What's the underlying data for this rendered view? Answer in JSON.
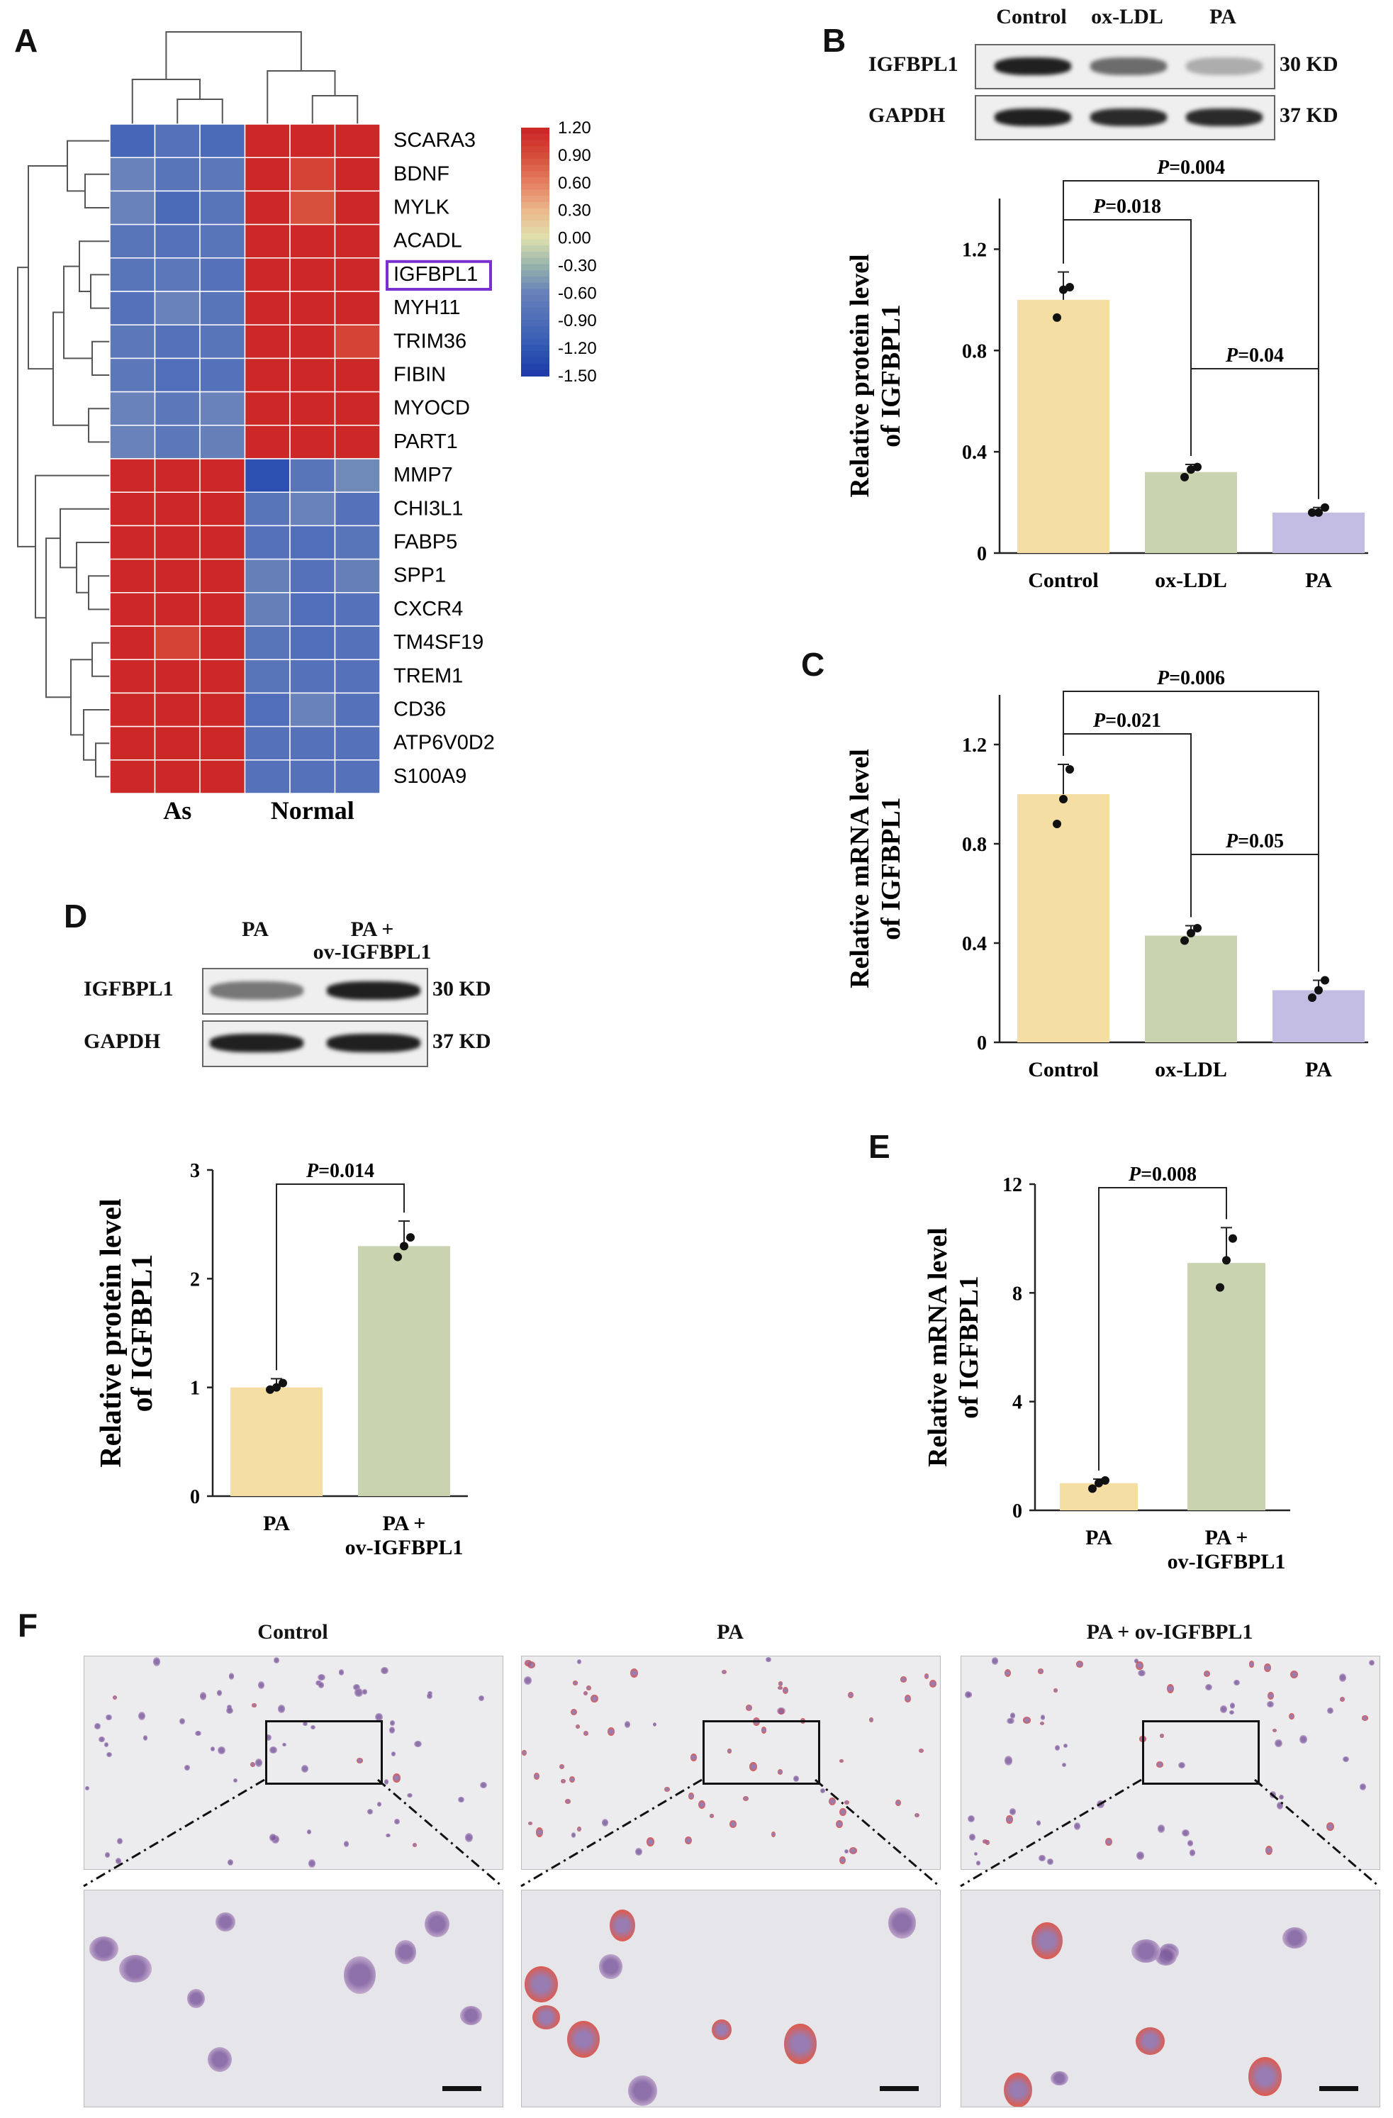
{
  "panels": {
    "a": "A",
    "b": "B",
    "c": "C",
    "d": "D",
    "e": "E",
    "f": "F"
  },
  "heatmap": {
    "genes": [
      "SCARA3",
      "BDNF",
      "MYLK",
      "ACADL",
      "IGFBPL1",
      "MYH11",
      "TRIM36",
      "FIBIN",
      "MYOCD",
      "PART1",
      "MMP7",
      "CHI3L1",
      "FABP5",
      "SPP1",
      "CXCR4",
      "TM4SF19",
      "TREM1",
      "CD36",
      "ATP6V0D2",
      "S100A9"
    ],
    "highlighted_gene": "IGFBPL1",
    "group_labels": [
      "As",
      "Normal"
    ],
    "legend_ticks": [
      "1.20",
      "0.90",
      "0.60",
      "0.30",
      "0.00",
      "-0.30",
      "-0.60",
      "-0.90",
      "-1.20",
      "-1.50"
    ],
    "values": [
      [
        -1.0,
        -0.85,
        -0.95,
        1.2,
        1.2,
        1.2
      ],
      [
        -0.6,
        -0.8,
        -0.75,
        1.2,
        1.0,
        1.2
      ],
      [
        -0.6,
        -0.95,
        -0.8,
        1.2,
        0.9,
        1.2
      ],
      [
        -0.8,
        -0.85,
        -0.8,
        1.2,
        1.2,
        1.2
      ],
      [
        -0.8,
        -0.75,
        -0.85,
        1.2,
        1.2,
        1.2
      ],
      [
        -0.85,
        -0.6,
        -0.8,
        1.2,
        1.2,
        1.2
      ],
      [
        -0.75,
        -0.85,
        -0.8,
        1.2,
        1.2,
        1.0
      ],
      [
        -0.75,
        -0.9,
        -0.85,
        1.2,
        1.2,
        1.2
      ],
      [
        -0.6,
        -0.75,
        -0.6,
        1.2,
        1.2,
        1.2
      ],
      [
        -0.6,
        -0.75,
        -0.65,
        1.2,
        1.2,
        1.2
      ],
      [
        1.2,
        1.2,
        1.2,
        -1.3,
        -0.8,
        -0.55
      ],
      [
        1.2,
        1.2,
        1.2,
        -0.8,
        -0.6,
        -0.85
      ],
      [
        1.2,
        1.2,
        1.2,
        -0.85,
        -0.9,
        -0.8
      ],
      [
        1.2,
        1.2,
        1.2,
        -0.65,
        -0.85,
        -0.65
      ],
      [
        1.2,
        1.2,
        1.2,
        -0.65,
        -0.9,
        -0.85
      ],
      [
        1.2,
        1.0,
        1.2,
        -0.8,
        -0.9,
        -0.85
      ],
      [
        1.2,
        1.2,
        1.2,
        -0.8,
        -0.85,
        -0.85
      ],
      [
        1.2,
        1.2,
        1.2,
        -0.9,
        -0.6,
        -0.85
      ],
      [
        1.2,
        1.2,
        1.2,
        -0.85,
        -0.85,
        -0.85
      ],
      [
        1.2,
        1.2,
        1.2,
        -0.85,
        -0.85,
        -0.85
      ]
    ]
  },
  "blots": {
    "b": {
      "columns": [
        "Control",
        "ox-LDL",
        "PA"
      ],
      "rows": [
        "IGFBPL1",
        "GAPDH"
      ],
      "sizes": [
        "30 KD",
        "37 KD"
      ],
      "intensity": [
        [
          0.95,
          0.6,
          0.3
        ],
        [
          0.95,
          0.9,
          0.9
        ]
      ]
    },
    "d": {
      "columns": [
        "PA",
        "PA +\nov-IGFBPL1"
      ],
      "rows": [
        "IGFBPL1",
        "GAPDH"
      ],
      "sizes": [
        "30 KD",
        "37 KD"
      ],
      "intensity": [
        [
          0.55,
          0.95
        ],
        [
          0.95,
          0.95
        ]
      ]
    }
  },
  "chart_data": [
    {
      "panel": "B",
      "type": "bar",
      "categories": [
        "Control",
        "ox-LDL",
        "PA"
      ],
      "values": [
        1.0,
        0.32,
        0.16
      ],
      "errors": [
        0.11,
        0.03,
        0.02
      ],
      "points": [
        [
          0.93,
          1.04,
          1.05
        ],
        [
          0.3,
          0.33,
          0.34
        ],
        [
          0.16,
          0.16,
          0.18
        ]
      ],
      "colors": [
        "#f5dea4",
        "#c9d3af",
        "#c4bde3"
      ],
      "ylabel": "Relative protein level\nof IGFBPL1",
      "ylim": [
        0,
        1.4
      ],
      "yticks": [
        "0",
        "0.4",
        "0.8",
        "1.2"
      ],
      "comparisons": [
        {
          "from": 0,
          "to": 1,
          "label": "P=0.018"
        },
        {
          "from": 0,
          "to": 2,
          "label": "P=0.004"
        },
        {
          "from": 1,
          "to": 2,
          "label": "P=0.04"
        }
      ]
    },
    {
      "panel": "C",
      "type": "bar",
      "categories": [
        "Control",
        "ox-LDL",
        "PA"
      ],
      "values": [
        1.0,
        0.43,
        0.21
      ],
      "errors": [
        0.12,
        0.04,
        0.04
      ],
      "points": [
        [
          0.88,
          0.98,
          1.1
        ],
        [
          0.41,
          0.44,
          0.46
        ],
        [
          0.18,
          0.21,
          0.25
        ]
      ],
      "colors": [
        "#f5dea4",
        "#c9d3af",
        "#c4bde3"
      ],
      "ylabel": "Relative mRNA level\nof IGFBPL1",
      "ylim": [
        0,
        1.4
      ],
      "yticks": [
        "0",
        "0.4",
        "0.8",
        "1.2"
      ],
      "comparisons": [
        {
          "from": 0,
          "to": 1,
          "label": "P=0.021"
        },
        {
          "from": 0,
          "to": 2,
          "label": "P=0.006"
        },
        {
          "from": 1,
          "to": 2,
          "label": "P=0.05"
        }
      ]
    },
    {
      "panel": "D",
      "type": "bar",
      "categories": [
        "PA",
        "PA +\nov-IGFBPL1"
      ],
      "values": [
        1.0,
        2.3
      ],
      "errors": [
        0.08,
        0.23
      ],
      "points": [
        [
          0.98,
          1.0,
          1.04
        ],
        [
          2.2,
          2.3,
          2.38
        ]
      ],
      "colors": [
        "#f5dea4",
        "#c9d3af"
      ],
      "ylabel": "Relative protein level\nof IGFBPL1",
      "ylim": [
        0,
        3
      ],
      "yticks": [
        "0",
        "1",
        "2",
        "3"
      ],
      "comparisons": [
        {
          "from": 0,
          "to": 1,
          "label": "P=0.014"
        }
      ]
    },
    {
      "panel": "E",
      "type": "bar",
      "categories": [
        "PA",
        "PA +\nov-IGFBPL1"
      ],
      "values": [
        1.0,
        9.1
      ],
      "errors": [
        0.15,
        1.3
      ],
      "points": [
        [
          0.8,
          1.0,
          1.1
        ],
        [
          8.2,
          9.2,
          10.0
        ]
      ],
      "colors": [
        "#f5dea4",
        "#c9d3af"
      ],
      "ylabel": "Relative mRNA level\nof IGFBPL1",
      "ylim": [
        0,
        12
      ],
      "yticks": [
        "0",
        "4",
        "8",
        "12"
      ],
      "comparisons": [
        {
          "from": 0,
          "to": 1,
          "label": "P=0.008"
        }
      ]
    }
  ],
  "micrographs": {
    "labels": [
      "Control",
      "PA",
      "PA + ov-IGFBPL1"
    ],
    "red_staining": [
      0.05,
      0.8,
      0.35
    ]
  }
}
